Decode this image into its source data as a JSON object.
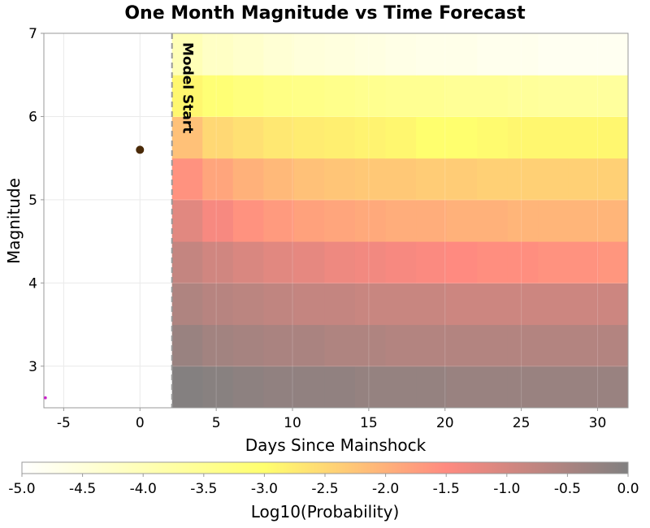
{
  "chart_data": {
    "type": "heatmap",
    "title": "One Month Magnitude vs Time Forecast",
    "xlabel": "Days Since Mainshock",
    "ylabel": "Magnitude",
    "xlim": [
      -6.3,
      32
    ],
    "ylim": [
      2.5,
      7
    ],
    "x_ticks": [
      -5,
      0,
      5,
      10,
      15,
      20,
      25,
      30
    ],
    "y_ticks": [
      3,
      4,
      5,
      6,
      7
    ],
    "x_tick_labels": [
      "-5",
      "0",
      "5",
      "10",
      "15",
      "20",
      "25",
      "30"
    ],
    "y_tick_labels": [
      "3",
      "4",
      "5",
      "6",
      "7"
    ],
    "grid": true,
    "model_start": {
      "x": 2.1,
      "label": "Model Start"
    },
    "forecast_x_edges": [
      2.1,
      4.1,
      6.1,
      8.1,
      10.1,
      12.1,
      14.1,
      16.1,
      18.1,
      20.1,
      22.1,
      24.1,
      26.1,
      28.1,
      30.1,
      32.1
    ],
    "magnitude_bins": [
      {
        "mag_min": 2.5,
        "mag_max": 3.0,
        "log10_prob": [
          -0.05,
          -0.1,
          -0.15,
          -0.2,
          -0.2,
          -0.2,
          -0.25,
          -0.25,
          -0.25,
          -0.3,
          -0.3,
          -0.3,
          -0.3,
          -0.3,
          -0.3
        ]
      },
      {
        "mag_min": 3.0,
        "mag_max": 3.5,
        "log10_prob": [
          -0.3,
          -0.4,
          -0.45,
          -0.5,
          -0.5,
          -0.55,
          -0.55,
          -0.6,
          -0.6,
          -0.6,
          -0.6,
          -0.6,
          -0.6,
          -0.6,
          -0.6
        ]
      },
      {
        "mag_min": 3.5,
        "mag_max": 4.0,
        "log10_prob": [
          -0.55,
          -0.65,
          -0.7,
          -0.75,
          -0.8,
          -0.8,
          -0.85,
          -0.85,
          -0.85,
          -0.9,
          -0.9,
          -0.9,
          -0.9,
          -0.9,
          -0.9
        ]
      },
      {
        "mag_min": 4.0,
        "mag_max": 4.5,
        "log10_prob": [
          -0.8,
          -0.95,
          -1.05,
          -1.15,
          -1.2,
          -1.3,
          -1.35,
          -1.4,
          -1.45,
          -1.5,
          -1.55,
          -1.55,
          -1.6,
          -1.6,
          -1.65
        ]
      },
      {
        "mag_min": 4.5,
        "mag_max": 5.0,
        "log10_prob": [
          -1.15,
          -1.4,
          -1.6,
          -1.7,
          -1.8,
          -1.85,
          -1.9,
          -1.95,
          -1.95,
          -2.0,
          -2.0,
          -2.05,
          -2.05,
          -2.05,
          -2.05
        ]
      },
      {
        "mag_min": 5.0,
        "mag_max": 5.5,
        "log10_prob": [
          -1.6,
          -1.85,
          -2.0,
          -2.1,
          -2.2,
          -2.25,
          -2.3,
          -2.3,
          -2.35,
          -2.35,
          -2.4,
          -2.4,
          -2.4,
          -2.4,
          -2.4
        ]
      },
      {
        "mag_min": 5.5,
        "mag_max": 6.0,
        "log10_prob": [
          -2.2,
          -2.5,
          -2.6,
          -2.7,
          -2.75,
          -2.8,
          -2.85,
          -2.9,
          -3.0,
          -3.0,
          -2.95,
          -2.9,
          -2.9,
          -2.9,
          -2.9
        ]
      },
      {
        "mag_min": 6.0,
        "mag_max": 6.5,
        "log10_prob": [
          -2.9,
          -3.1,
          -3.2,
          -3.3,
          -3.35,
          -3.4,
          -3.45,
          -3.5,
          -3.5,
          -3.55,
          -3.55,
          -3.6,
          -3.65,
          -3.65,
          -3.65
        ]
      },
      {
        "mag_min": 6.5,
        "mag_max": 7.0,
        "log10_prob": [
          -4.0,
          -4.2,
          -4.3,
          -4.4,
          -4.5,
          -4.55,
          -4.6,
          -4.65,
          -4.7,
          -4.7,
          -4.75,
          -4.75,
          -4.8,
          -4.8,
          -4.8
        ]
      }
    ],
    "observed_points": [
      {
        "x": 0.0,
        "y": 5.6,
        "color": "#4a2a08"
      },
      {
        "x": -6.2,
        "y": 2.62,
        "color": "#cc22cc"
      }
    ],
    "colorbar": {
      "label": "Log10(Probability)",
      "min": -5.0,
      "max": 0.0,
      "ticks": [
        -5.0,
        -4.5,
        -4.0,
        -3.5,
        -3.0,
        -2.5,
        -2.0,
        -1.5,
        -1.0,
        -0.5,
        0.0
      ],
      "tick_labels": [
        "-5.0",
        "-4.5",
        "-4.0",
        "-3.5",
        "-3.0",
        "-2.5",
        "-2.0",
        "-1.5",
        "-1.0",
        "-0.5",
        "0.0"
      ],
      "stops": [
        {
          "v": -5.0,
          "color": "#ffffff"
        },
        {
          "v": -3.0,
          "color": "#ffff6e"
        },
        {
          "v": -1.5,
          "color": "#ff8a80"
        },
        {
          "v": 0.0,
          "color": "#808080"
        }
      ]
    }
  }
}
